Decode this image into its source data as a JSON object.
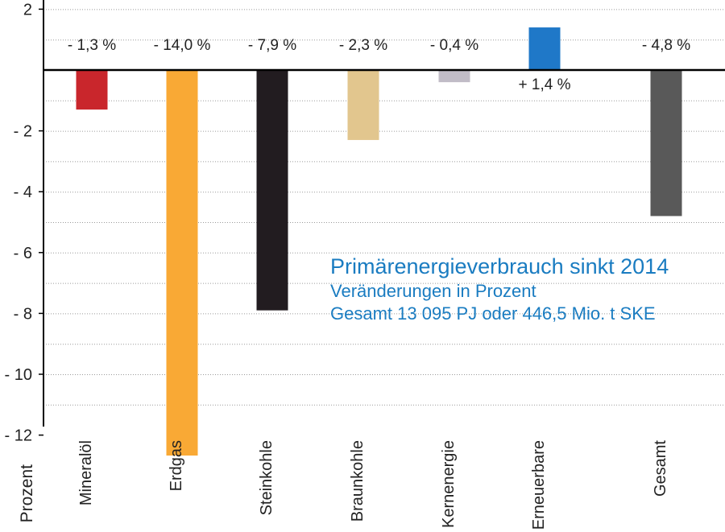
{
  "chart_data": {
    "type": "bar",
    "title": "Primärenergieverbrauch sinkt 2014",
    "subtitle": "Veränderungen in Prozent",
    "note": "Gesamt 13 095 PJ oder 446,5 Mio. t SKE",
    "ylabel": "Prozent",
    "ylim": [
      -13,
      2
    ],
    "yticks": [
      2,
      -2,
      -4,
      -6,
      -8,
      -10,
      -12
    ],
    "ytick_labels": [
      "2",
      "- 2",
      "- 4",
      "- 6",
      "- 8",
      "- 10",
      "- 12"
    ],
    "grid": true,
    "categories": [
      "Mineralöl",
      "Erdgas",
      "Steinkohle",
      "Braunkohle",
      "Kernenergie",
      "Erneuerbare",
      "Gesamt"
    ],
    "values": [
      -1.3,
      -14.0,
      -7.9,
      -2.3,
      -0.4,
      1.4,
      -4.8
    ],
    "value_labels": [
      "- 1,3 %",
      "- 14,0 %",
      "- 7,9 %",
      "- 2,3 %",
      "- 0,4 %",
      "+ 1,4 %",
      "- 4,8 %"
    ],
    "colors": [
      "#c9262c",
      "#f9a935",
      "#221c20",
      "#e2c68e",
      "#c1bcc7",
      "#1f78c8",
      "#595959"
    ]
  }
}
